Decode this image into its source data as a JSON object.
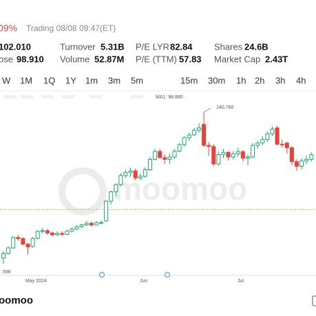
{
  "header": {
    "change": "09%",
    "status": "Trading 08/08 09:47(ET)"
  },
  "quote": {
    "rows": [
      [
        {
          "value": "102.010"
        },
        {
          "label": "Turnover",
          "value": "5.31B"
        },
        {
          "label": "P/E LYR",
          "value": "82.84"
        },
        {
          "label": "Shares",
          "value": "24.6B"
        }
      ],
      [
        {
          "label": "ose",
          "value": "98.910"
        },
        {
          "label": "Volume",
          "value": "52.87M"
        },
        {
          "label": "P/E (TTM)",
          "value": "57.83"
        },
        {
          "label": "Market Cap",
          "value": "2.43T"
        }
      ]
    ]
  },
  "tabs": [
    "W",
    "1M",
    "1Q",
    "1Y",
    "1m",
    "3m",
    "5m",
    "15m",
    "30m",
    "1h",
    "2h",
    "3h",
    "4h"
  ],
  "footer_logo": "oomoo",
  "chart_data": {
    "type": "candlestick",
    "indicator": "MA1: 98.880",
    "watermark": "moomoo",
    "high_label": {
      "value": 140.76,
      "label": "140.760"
    },
    "low_label": ".596",
    "x_labels": [
      "May 2024",
      "Jun",
      "Jul"
    ],
    "reference": 98.91,
    "ylim": [
      70.56,
      145.2
    ],
    "up_color": "#1ea66b",
    "down_color": "#e5433b",
    "open": [
      78.0,
      80.0,
      82.4,
      86.9,
      86.4,
      84.0,
      83.0,
      86.5,
      89.5,
      89.8,
      88.8,
      88.0,
      88.6,
      88.2,
      89.6,
      90.5,
      91.5,
      92.3,
      93.0,
      92.2,
      93.2,
      94.0,
      102.5,
      106.5,
      109.6,
      113.5,
      114.8,
      115.5,
      112.5,
      113.2,
      116.0,
      120.5,
      123.9,
      121.2,
      120.5,
      121.5,
      124.0,
      126.8,
      129.8,
      131.0,
      133.0,
      135.5,
      126.5,
      126.0,
      118.5,
      122.5,
      123.5,
      121.5,
      122.8,
      123.8,
      121.0,
      121.5,
      126.5,
      127.5,
      129.0,
      131.5,
      134.0,
      127.0,
      127.5,
      125.5,
      119.5,
      117.5,
      119.8,
      120.5
    ],
    "high": [
      81.0,
      83.0,
      87.5,
      88.0,
      87.0,
      84.5,
      87.0,
      90.0,
      91.0,
      90.5,
      89.5,
      89.5,
      89.6,
      90.2,
      91.2,
      92.2,
      92.8,
      94.0,
      93.8,
      94.0,
      94.2,
      103.0,
      107.0,
      110.0,
      114.5,
      116.0,
      117.0,
      116.5,
      114.5,
      117.0,
      121.5,
      125.0,
      125.0,
      122.5,
      123.0,
      125.0,
      127.5,
      130.5,
      132.0,
      134.0,
      136.0,
      140.76,
      128.0,
      127.0,
      124.0,
      125.0,
      124.0,
      124.0,
      125.5,
      124.5,
      122.5,
      127.5,
      128.5,
      130.5,
      132.5,
      134.8,
      135.0,
      129.0,
      128.0,
      126.0,
      120.5,
      121.0,
      122.0,
      123.5
    ],
    "low": [
      75.6,
      79.5,
      82.0,
      85.5,
      83.5,
      79.5,
      82.5,
      86.0,
      88.5,
      88.0,
      87.2,
      87.5,
      87.5,
      87.9,
      89.0,
      90.0,
      91.0,
      91.8,
      91.5,
      92.0,
      92.5,
      93.5,
      101.0,
      104.5,
      109.0,
      112.5,
      113.0,
      111.5,
      111.5,
      112.5,
      115.5,
      120.0,
      121.0,
      118.5,
      118.5,
      120.5,
      123.5,
      126.0,
      128.5,
      130.5,
      132.0,
      126.0,
      122.0,
      117.5,
      117.8,
      121.0,
      120.0,
      120.5,
      121.5,
      119.5,
      118.0,
      121.0,
      125.0,
      126.5,
      128.0,
      130.5,
      126.5,
      125.5,
      123.0,
      118.0,
      115.5,
      116.0,
      118.5,
      119.5
    ],
    "close": [
      80.0,
      82.4,
      86.9,
      86.4,
      84.0,
      82.8,
      86.5,
      89.5,
      89.8,
      88.8,
      88.0,
      88.6,
      88.2,
      89.6,
      90.5,
      91.5,
      92.3,
      93.0,
      92.2,
      93.2,
      93.3,
      102.5,
      106.5,
      109.6,
      113.5,
      114.8,
      115.5,
      112.5,
      113.2,
      116.0,
      120.5,
      123.9,
      121.2,
      120.5,
      121.5,
      124.0,
      126.8,
      129.8,
      131.0,
      133.0,
      134.0,
      126.5,
      126.0,
      118.5,
      122.5,
      123.5,
      121.5,
      122.8,
      123.8,
      121.0,
      121.5,
      126.5,
      127.5,
      129.0,
      131.5,
      133.5,
      127.0,
      126.8,
      125.5,
      119.5,
      117.5,
      119.8,
      120.5,
      122.5
    ]
  }
}
